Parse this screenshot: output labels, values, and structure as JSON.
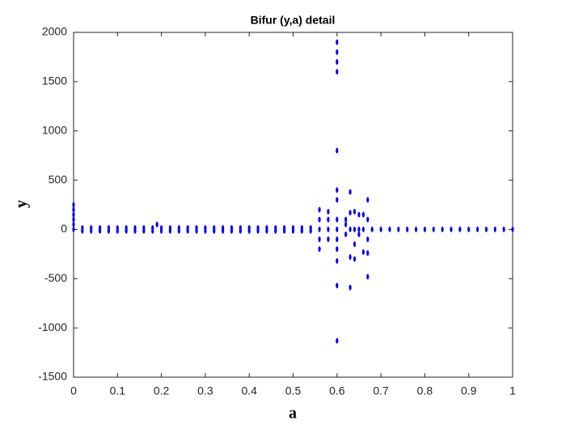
{
  "chart_data": {
    "type": "scatter",
    "title": "Bifur (y,a) detail",
    "x_label": "a",
    "y_label": "y",
    "color": "#0000ff",
    "xlim": [
      0,
      1
    ],
    "ylim": [
      -1500,
      2000
    ],
    "xticks": [
      0,
      0.1,
      0.2,
      0.3,
      0.4,
      0.5,
      0.6,
      0.7,
      0.8,
      0.9,
      1
    ],
    "yticks": [
      -1500,
      -1000,
      -500,
      0,
      500,
      1000,
      1500,
      2000
    ],
    "x": [
      0,
      0,
      0,
      0,
      0,
      0,
      0.02,
      0.02,
      0.04,
      0.04,
      0.06,
      0.06,
      0.08,
      0.08,
      0.1,
      0.1,
      0.12,
      0.12,
      0.14,
      0.14,
      0.16,
      0.16,
      0.18,
      0.18,
      0.2,
      0.2,
      0.22,
      0.22,
      0.24,
      0.24,
      0.26,
      0.26,
      0.28,
      0.28,
      0.3,
      0.3,
      0.32,
      0.32,
      0.34,
      0.34,
      0.36,
      0.36,
      0.38,
      0.38,
      0.4,
      0.4,
      0.42,
      0.42,
      0.44,
      0.44,
      0.46,
      0.46,
      0.48,
      0.48,
      0.5,
      0.5,
      0.52,
      0.52,
      0.54,
      0.54,
      0.19,
      0.56,
      0.56,
      0.56,
      0.56,
      0.56,
      0.58,
      0.58,
      0.58,
      0.58,
      0.6,
      0.6,
      0.6,
      0.6,
      0.6,
      0.6,
      0.6,
      0.6,
      0.6,
      0.6,
      0.6,
      0.6,
      0.6,
      0.6,
      0.62,
      0.62,
      0.62,
      0.63,
      0.63,
      0.63,
      0.63,
      0.63,
      0.64,
      0.64,
      0.64,
      0.64,
      0.65,
      0.65,
      0.65,
      0.66,
      0.66,
      0.66,
      0.67,
      0.67,
      0.67,
      0.67,
      0.67,
      0.68,
      0.7,
      0.72,
      0.74,
      0.76,
      0.78,
      0.8,
      0.82,
      0.84,
      0.86,
      0.88,
      0.9,
      0.92,
      0.94,
      0.96,
      0.98,
      1
    ],
    "y": [
      0,
      50,
      100,
      150,
      200,
      250,
      15,
      -15,
      15,
      -15,
      15,
      -15,
      15,
      -15,
      15,
      -15,
      15,
      -15,
      15,
      -15,
      15,
      -15,
      15,
      -15,
      15,
      -15,
      15,
      -15,
      15,
      -15,
      15,
      -15,
      15,
      -15,
      15,
      -15,
      15,
      -15,
      15,
      -15,
      15,
      -15,
      15,
      -15,
      15,
      -15,
      15,
      -15,
      15,
      -15,
      15,
      -15,
      15,
      -15,
      15,
      -15,
      15,
      -15,
      15,
      -15,
      50,
      -200,
      -100,
      0,
      100,
      200,
      -100,
      0,
      100,
      180,
      1900,
      1800,
      1700,
      1600,
      800,
      400,
      300,
      100,
      0,
      -100,
      -200,
      -320,
      -570,
      -1130,
      -50,
      50,
      100,
      380,
      170,
      0,
      -280,
      -590,
      180,
      0,
      -150,
      -300,
      150,
      0,
      -50,
      150,
      0,
      -230,
      300,
      100,
      -100,
      -240,
      -480,
      0,
      0,
      0,
      0,
      0,
      0,
      0,
      0,
      0,
      0,
      0,
      0,
      0,
      0,
      0,
      0,
      0
    ]
  }
}
